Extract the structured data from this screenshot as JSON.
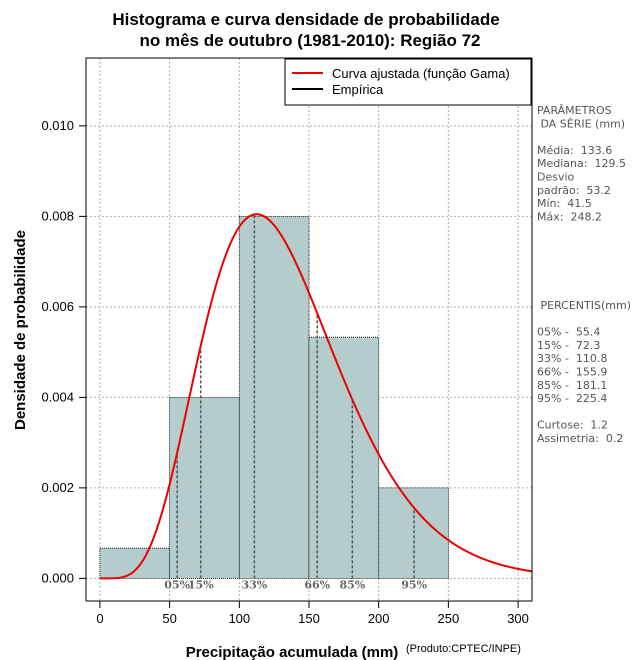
{
  "chart_data": {
    "type": "bar",
    "title_lines": [
      "Histograma e curva densidade de probabilidade",
      "no mês de outubro (1981-2010): Região 72"
    ],
    "xlabel": "Precipitação acumulada (mm)",
    "ylabel": "Densidade de probabilidade",
    "credit": "(Produto:CPTEC/INPE)",
    "xlim": [
      -10,
      310
    ],
    "ylim": [
      -0.0005,
      0.0115
    ],
    "x_ticks": [
      0,
      50,
      100,
      150,
      200,
      250,
      300
    ],
    "y_ticks": [
      0.0,
      0.002,
      0.004,
      0.006,
      0.008,
      0.01
    ],
    "y_tick_labels": [
      "0.000",
      "0.002",
      "0.004",
      "0.006",
      "0.008",
      "0.010"
    ],
    "bins": [
      {
        "from": 0,
        "to": 50,
        "density": 0.000667
      },
      {
        "from": 50,
        "to": 100,
        "density": 0.004
      },
      {
        "from": 100,
        "to": 150,
        "density": 0.008
      },
      {
        "from": 150,
        "to": 200,
        "density": 0.00533
      },
      {
        "from": 200,
        "to": 250,
        "density": 0.002
      }
    ],
    "gamma_curve": {
      "mean": 133.6,
      "sd": 53.2,
      "color": "#ee0000"
    },
    "percentile_lines": [
      {
        "label": "05%",
        "value": 55.4
      },
      {
        "label": "15%",
        "value": 72.3
      },
      {
        "label": "33%",
        "value": 110.8
      },
      {
        "label": "66%",
        "value": 155.9
      },
      {
        "label": "85%",
        "value": 181.1
      },
      {
        "label": "95%",
        "value": 225.4
      }
    ],
    "legend": [
      {
        "label": "Curva ajustada (função Gama)",
        "color": "#ee0000"
      },
      {
        "label": "Empírica",
        "color": "#000000"
      }
    ],
    "bar_color": "#b4cccc",
    "grid": true
  },
  "sidebar": {
    "params_lines": [
      "PARÂMETROS",
      " DA SÉRIE (mm)",
      "",
      "Média:  133.6",
      "Mediana:  129.5",
      "Desvio",
      "padrão:  53.2",
      "Mín:  41.5",
      "Máx:  248.2"
    ],
    "pct_lines": [
      " PERCENTIS(mm)",
      "",
      "05% -  55.4",
      "15% -  72.3",
      "33% -  110.8",
      "66% -  155.9",
      "85% -  181.1",
      "95% -  225.4",
      "",
      "Curtose:  1.2",
      "Assimetria:  0.2"
    ]
  }
}
